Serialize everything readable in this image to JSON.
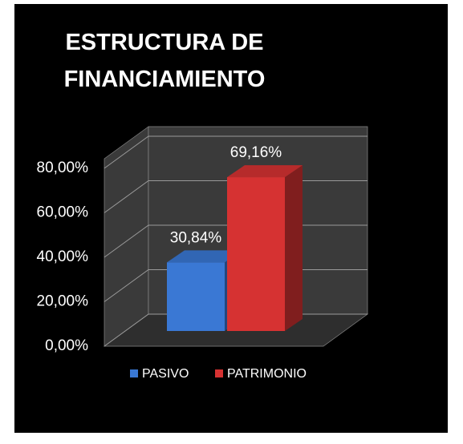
{
  "chart_data": {
    "type": "bar3d",
    "title": "ESTRUCTURA DE FINANCIAMIENTO",
    "series": [
      {
        "name": "PASIVO",
        "color": "#3a78d4",
        "values": [
          30.84
        ],
        "value_labels": [
          "30,84%"
        ]
      },
      {
        "name": "PATRIMONIO",
        "color": "#d63232",
        "values": [
          69.16
        ],
        "value_labels": [
          "69,16%"
        ]
      }
    ],
    "ylim": [
      0,
      80
    ],
    "yticks": [
      {
        "value": 0,
        "label": "0,00%"
      },
      {
        "value": 20,
        "label": "20,00%"
      },
      {
        "value": 40,
        "label": "40,00%"
      },
      {
        "value": 60,
        "label": "60,00%"
      },
      {
        "value": 80,
        "label": "80,00%"
      }
    ],
    "grid": true,
    "legend": "bottom"
  }
}
